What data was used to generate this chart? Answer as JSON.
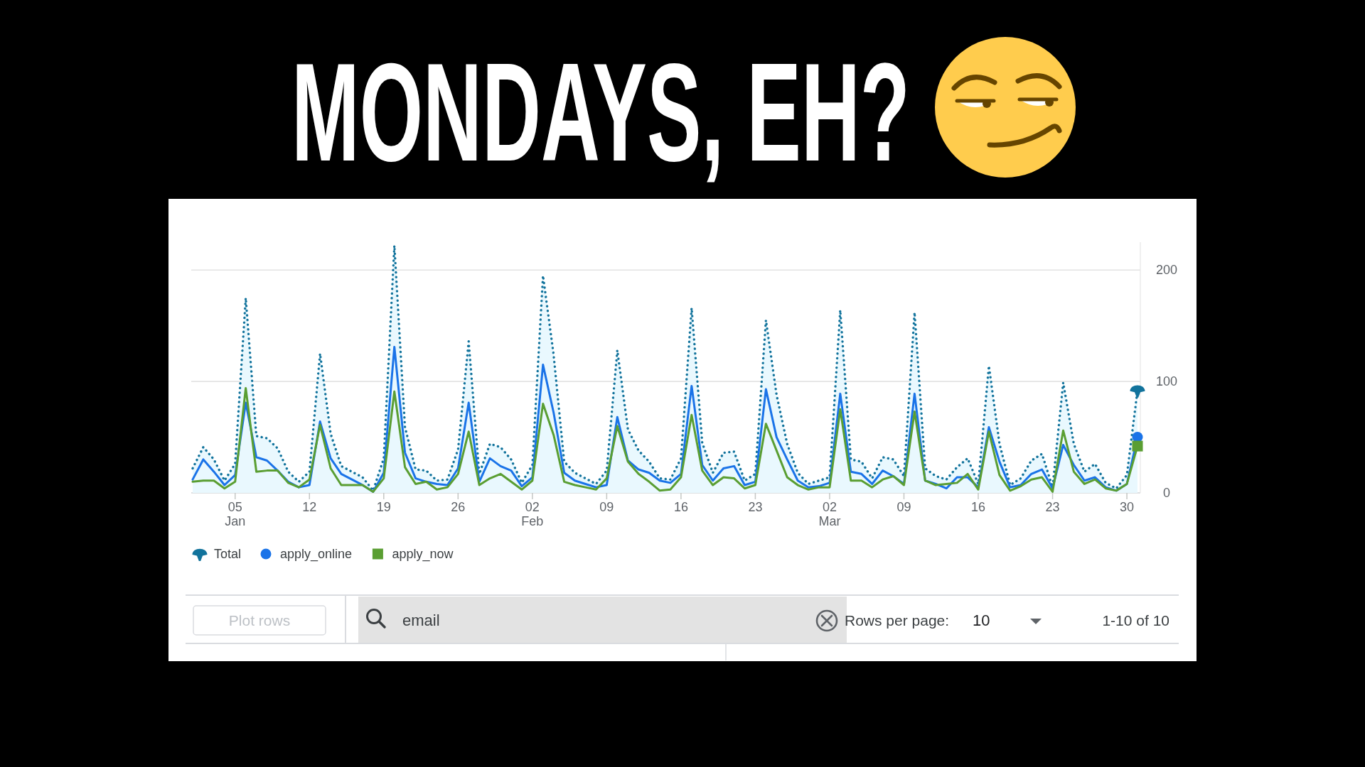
{
  "chart_data": {
    "type": "line",
    "title": "MONDAYS, EH?",
    "x": [
      "--01-01",
      "--01-02",
      "--01-03",
      "--01-04",
      "--01-05",
      "--01-06",
      "--01-07",
      "--01-08",
      "--01-09",
      "--01-10",
      "--01-11",
      "--01-12",
      "--01-13",
      "--01-14",
      "--01-15",
      "--01-16",
      "--01-17",
      "--01-18",
      "--01-19",
      "--01-20",
      "--01-21",
      "--01-22",
      "--01-23",
      "--01-24",
      "--01-25",
      "--01-26",
      "--01-27",
      "--01-28",
      "--01-29",
      "--01-30",
      "--01-31",
      "--02-01",
      "--02-02",
      "--02-03",
      "--02-04",
      "--02-05",
      "--02-06",
      "--02-07",
      "--02-08",
      "--02-09",
      "--02-10",
      "--02-11",
      "--02-12",
      "--02-13",
      "--02-14",
      "--02-15",
      "--02-16",
      "--02-17",
      "--02-18",
      "--02-19",
      "--02-20",
      "--02-21",
      "--02-22",
      "--02-23",
      "--02-24",
      "--02-25",
      "--02-26",
      "--02-27",
      "--02-28",
      "--03-01",
      "--03-02",
      "--03-03",
      "--03-04",
      "--03-05",
      "--03-06",
      "--03-07",
      "--03-08",
      "--03-09",
      "--03-10",
      "--03-11",
      "--03-12",
      "--03-13",
      "--03-14",
      "--03-15",
      "--03-16",
      "--03-17",
      "--03-18",
      "--03-19",
      "--03-20",
      "--03-21",
      "--03-22",
      "--03-23",
      "--03-24",
      "--03-25",
      "--03-26",
      "--03-27",
      "--03-28",
      "--03-29",
      "--03-30",
      "--03-31"
    ],
    "xlim": [
      "--01-01",
      "--03-31"
    ],
    "xticks": [
      {
        "value": "--01-05",
        "label": "05\nJan"
      },
      {
        "value": "--01-12",
        "label": "12"
      },
      {
        "value": "--01-19",
        "label": "19"
      },
      {
        "value": "--01-26",
        "label": "26"
      },
      {
        "value": "--02-02",
        "label": "02\nFeb"
      },
      {
        "value": "--02-09",
        "label": "09"
      },
      {
        "value": "--02-16",
        "label": "16"
      },
      {
        "value": "--02-23",
        "label": "23"
      },
      {
        "value": "--03-02",
        "label": "02\nMar"
      },
      {
        "value": "--03-09",
        "label": "09"
      },
      {
        "value": "--03-16",
        "label": "16"
      },
      {
        "value": "--03-23",
        "label": "23"
      },
      {
        "value": "--03-30",
        "label": "30"
      }
    ],
    "ylim": [
      0,
      225
    ],
    "yticks": [
      0,
      100,
      200
    ],
    "grid": "y",
    "legend": "bottom left",
    "series": [
      {
        "name": "Total",
        "type": "area",
        "color": "#12739c",
        "line_style": "dotted",
        "values": [
          22,
          41,
          30,
          11,
          26,
          175,
          51,
          49,
          40,
          19,
          10,
          19,
          125,
          53,
          24,
          19,
          14,
          2,
          31,
          222,
          59,
          21,
          20,
          11,
          12,
          39,
          136,
          17,
          44,
          41,
          30,
          9,
          25,
          195,
          124,
          28,
          18,
          13,
          8,
          20,
          128,
          57,
          38,
          28,
          13,
          12,
          31,
          166,
          45,
          18,
          36,
          37,
          11,
          17,
          155,
          88,
          44,
          18,
          8,
          11,
          14,
          164,
          30,
          28,
          13,
          32,
          30,
          15,
          162,
          22,
          15,
          12,
          23,
          31,
          8,
          114,
          44,
          7,
          13,
          29,
          35,
          5,
          99,
          44,
          19,
          26,
          9,
          4,
          16,
          92
        ]
      },
      {
        "name": "apply_online",
        "color": "#1a73e8",
        "values": [
          12,
          30,
          19,
          7,
          16,
          81,
          32,
          29,
          20,
          10,
          5,
          7,
          64,
          31,
          17,
          12,
          7,
          1,
          18,
          131,
          36,
          13,
          10,
          8,
          7,
          22,
          81,
          10,
          31,
          24,
          20,
          6,
          14,
          115,
          72,
          18,
          11,
          8,
          5,
          7,
          68,
          29,
          21,
          18,
          11,
          9,
          17,
          96,
          25,
          11,
          22,
          24,
          7,
          10,
          93,
          50,
          30,
          11,
          5,
          6,
          9,
          89,
          19,
          17,
          8,
          20,
          15,
          8,
          89,
          11,
          8,
          4,
          14,
          14,
          5,
          59,
          28,
          5,
          7,
          17,
          21,
          4,
          43,
          25,
          11,
          14,
          5,
          2,
          8,
          50
        ]
      },
      {
        "name": "apply_now",
        "color": "#5a9e32",
        "values": [
          10,
          11,
          11,
          4,
          10,
          94,
          19,
          20,
          20,
          9,
          5,
          12,
          61,
          22,
          7,
          7,
          7,
          1,
          13,
          91,
          23,
          8,
          10,
          3,
          5,
          17,
          55,
          7,
          13,
          17,
          10,
          3,
          11,
          80,
          52,
          10,
          7,
          5,
          3,
          13,
          60,
          28,
          17,
          10,
          2,
          3,
          14,
          70,
          20,
          7,
          14,
          13,
          4,
          7,
          62,
          38,
          14,
          7,
          3,
          5,
          5,
          75,
          11,
          11,
          5,
          12,
          15,
          7,
          73,
          11,
          7,
          8,
          9,
          17,
          3,
          55,
          16,
          2,
          6,
          12,
          14,
          1,
          56,
          19,
          8,
          12,
          4,
          2,
          8,
          42
        ]
      }
    ],
    "annotations": [
      "Plot rows",
      "email",
      "Rows per page:",
      "10",
      "1-10 of 10"
    ]
  }
}
